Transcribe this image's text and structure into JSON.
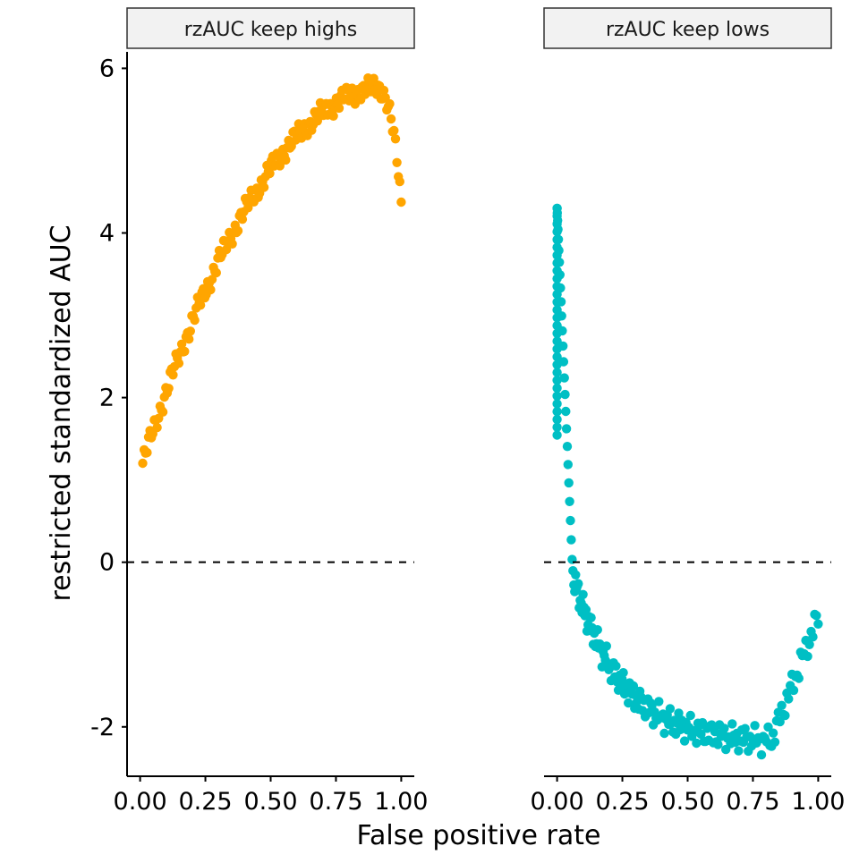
{
  "chart_data": {
    "type": "scatter",
    "xlabel": "False positive rate",
    "ylabel": "restricted standardized AUC",
    "ylim": [
      -2.6,
      6.2
    ],
    "y_ticks": [
      "6",
      "4",
      "2",
      "0",
      "-2"
    ],
    "x_ticks": [
      "0.00",
      "0.25",
      "0.50",
      "0.75",
      "1.00"
    ],
    "xlim": [
      -0.05,
      1.05
    ],
    "reference_line_y": 0,
    "grid": false,
    "legend": "none",
    "panels": [
      {
        "title": "rzAUC keep highs",
        "color": "#FFA500",
        "series": "highs"
      },
      {
        "title": "rzAUC keep lows",
        "color": "#00BFC4",
        "series": "lows"
      }
    ]
  }
}
